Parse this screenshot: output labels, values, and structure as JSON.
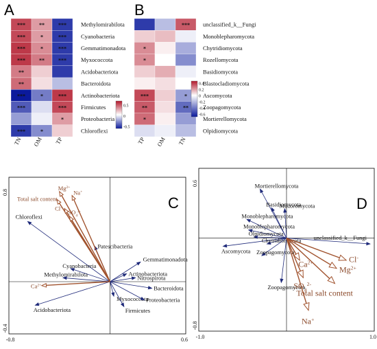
{
  "chart_data": [
    {
      "type": "heatmap",
      "panel_label": "A",
      "columns": [
        "TN",
        "OM",
        "TP"
      ],
      "rows": [
        "Methylomirabilota",
        "Cyanobacteria",
        "Gemmatimonadota",
        "Myxococcota",
        "Acidobacteriota",
        "Bacteroidota",
        "Actinobacteriota",
        "Firmicutes",
        "Proteobacteria",
        "Chloroflexi"
      ],
      "values": [
        [
          0.55,
          0.3,
          -0.6
        ],
        [
          0.55,
          0.3,
          -0.6
        ],
        [
          0.6,
          0.35,
          -0.6
        ],
        [
          0.6,
          0.4,
          -0.6
        ],
        [
          0.4,
          0.15,
          -0.6
        ],
        [
          0.45,
          0.1,
          -0.2
        ],
        [
          -0.7,
          -0.4,
          0.6
        ],
        [
          -0.5,
          -0.1,
          0.55
        ],
        [
          -0.3,
          -0.05,
          0.3
        ],
        [
          -0.6,
          -0.35,
          0.15
        ]
      ],
      "stars": [
        [
          "***",
          "**",
          "***"
        ],
        [
          "***",
          "*",
          "***"
        ],
        [
          "***",
          "*",
          "***"
        ],
        [
          "***",
          "**",
          "***"
        ],
        [
          "**",
          "",
          ""
        ],
        [
          "**",
          "",
          ""
        ],
        [
          "***",
          "*",
          "***"
        ],
        [
          "***",
          "",
          "***"
        ],
        [
          "",
          "",
          "*"
        ],
        [
          "***",
          "*",
          ""
        ]
      ],
      "legend_ticks": [
        "0.5",
        "0",
        "-0.5"
      ],
      "legend_values": [
        0.5,
        0,
        -0.5
      ]
    },
    {
      "type": "heatmap",
      "panel_label": "B",
      "columns": [
        "TP",
        "OM",
        "TN"
      ],
      "rows": [
        "unclassified_k__Fungi",
        "Monoblepharomycota",
        "Chytridiomycota",
        "Rozellomycota",
        "Basidiomycota",
        "Blastocladiomycota",
        "Ascomycota",
        "Zoopagomycota",
        "Mortierellomycota",
        "Olpidiomycota"
      ],
      "values": [
        [
          -0.6,
          -0.2,
          0.5
        ],
        [
          0.15,
          0.2,
          -0.05
        ],
        [
          0.35,
          0.05,
          -0.25
        ],
        [
          0.35,
          0.0,
          -0.35
        ],
        [
          0.15,
          0.25,
          -0.05
        ],
        [
          0.05,
          0.1,
          0.0
        ],
        [
          0.55,
          0.15,
          -0.3
        ],
        [
          0.5,
          0.1,
          -0.45
        ],
        [
          0.45,
          0.05,
          -0.3
        ],
        [
          -0.1,
          -0.05,
          -0.2
        ]
      ],
      "stars": [
        [
          "",
          "",
          "***"
        ],
        [
          "",
          "",
          ""
        ],
        [
          "*",
          "",
          ""
        ],
        [
          "*",
          "",
          ""
        ],
        [
          "",
          "",
          ""
        ],
        [
          "",
          "",
          ""
        ],
        [
          "***",
          "",
          "*"
        ],
        [
          "**",
          "",
          "**"
        ],
        [
          "*",
          "",
          ""
        ],
        [
          "",
          "",
          ""
        ]
      ],
      "legend_ticks": [
        "0.4",
        "0.2",
        "0",
        "-0.2",
        "-0.4",
        "-0.6"
      ],
      "legend_values": [
        0.4,
        0.2,
        0,
        -0.2,
        -0.4,
        -0.6
      ]
    },
    {
      "type": "scatter",
      "subtype": "rda-biplot",
      "panel_label": "C",
      "xlim": [
        -0.8,
        0.6
      ],
      "ylim": [
        -0.4,
        0.8
      ],
      "x_ticks": [
        "-0.8",
        "0.6"
      ],
      "y_ticks": [
        "0.8",
        "-0.4"
      ],
      "env_vectors": [
        {
          "name": "Mg2+",
          "label": "Mg",
          "sup": "2+",
          "x": -0.4,
          "y": 0.69
        },
        {
          "name": "Na+",
          "label": "Na",
          "sup": "+",
          "x": -0.3,
          "y": 0.66
        },
        {
          "name": "Total salt content",
          "label": "Total salt content",
          "sup": "",
          "x": -0.42,
          "y": 0.63
        },
        {
          "name": "Cl-",
          "label": "Cl",
          "sup": "-",
          "x": -0.36,
          "y": 0.56
        },
        {
          "name": "SO4 2-",
          "label": "SO",
          "sub": "4",
          "sup": "2-",
          "x": -0.32,
          "y": 0.5
        },
        {
          "name": "Ca2+",
          "label": "Ca",
          "sup": "2+",
          "x": -0.54,
          "y": -0.03
        }
      ],
      "species": [
        {
          "name": "Chloroflexi",
          "x": -0.65,
          "y": 0.46
        },
        {
          "name": "Patescibacteria",
          "x": -0.12,
          "y": 0.27
        },
        {
          "name": "Cyanobacteria",
          "x": -0.31,
          "y": 0.1
        },
        {
          "name": "Methylomirabilota",
          "x": -0.37,
          "y": 0.03
        },
        {
          "name": "Acidobacteriota",
          "x": -0.59,
          "y": -0.18
        },
        {
          "name": "Gemmatimonadota",
          "x": 0.24,
          "y": 0.15
        },
        {
          "name": "Actinobacteriota",
          "x": 0.13,
          "y": 0.06
        },
        {
          "name": "Nitrospirota",
          "x": 0.2,
          "y": 0.03
        },
        {
          "name": "Bacteroidota",
          "x": 0.33,
          "y": -0.05
        },
        {
          "name": "Myxococcota",
          "x": 0.03,
          "y": -0.11
        },
        {
          "name": "Proteobacteria",
          "x": 0.27,
          "y": -0.14
        },
        {
          "name": "Firmicutes",
          "x": 0.11,
          "y": -0.19
        }
      ]
    },
    {
      "type": "scatter",
      "subtype": "rda-biplot",
      "panel_label": "D",
      "xlim": [
        -1.0,
        1.0
      ],
      "ylim": [
        -0.8,
        0.6
      ],
      "x_ticks": [
        "-1.0",
        "1.0"
      ],
      "y_ticks": [
        "0.6",
        "-0.8"
      ],
      "env_vectors": [
        {
          "name": "Cl-",
          "label": "Cl",
          "sup": "-",
          "x": 0.68,
          "y": -0.19
        },
        {
          "name": "Mg2+",
          "label": "Mg",
          "sup": "2+",
          "x": 0.57,
          "y": -0.26
        },
        {
          "name": "Ca2+",
          "label": "Ca",
          "sup": "2+",
          "x": 0.15,
          "y": -0.19
        },
        {
          "name": "SO4 2-",
          "label": "SO",
          "sub": "4",
          "sup": "2-",
          "x": 0.19,
          "y": -0.34
        },
        {
          "name": "Total salt content",
          "label": "Total salt content",
          "sup": "",
          "x": 0.55,
          "y": -0.39
        },
        {
          "name": "Na+",
          "label": "Na",
          "sup": "+",
          "x": 0.25,
          "y": -0.62
        }
      ],
      "species": [
        {
          "name": "Mortierellomycota",
          "x": -0.3,
          "y": 0.42
        },
        {
          "name": "Basidiomycota",
          "x": -0.17,
          "y": 0.26
        },
        {
          "name": "Mucoromycota",
          "x": -0.02,
          "y": 0.25
        },
        {
          "name": "Monoblepharomycota",
          "x": -0.45,
          "y": 0.16
        },
        {
          "name": "Monoblepharomycota",
          "x": -0.43,
          "y": 0.07
        },
        {
          "name": "Olpidiomycota",
          "x": -0.37,
          "y": 0.01
        },
        {
          "name": "Ascomycota",
          "x": -0.72,
          "y": -0.07
        },
        {
          "name": "Chytridiomycota",
          "x": -0.22,
          "y": -0.05
        },
        {
          "name": "Zoopagomycota",
          "x": -0.28,
          "y": -0.15
        },
        {
          "name": "Zoopagomycota",
          "x": -0.06,
          "y": -0.38
        },
        {
          "name": "unclassified_k__Fungi",
          "x": 0.95,
          "y": -0.05
        }
      ]
    }
  ]
}
